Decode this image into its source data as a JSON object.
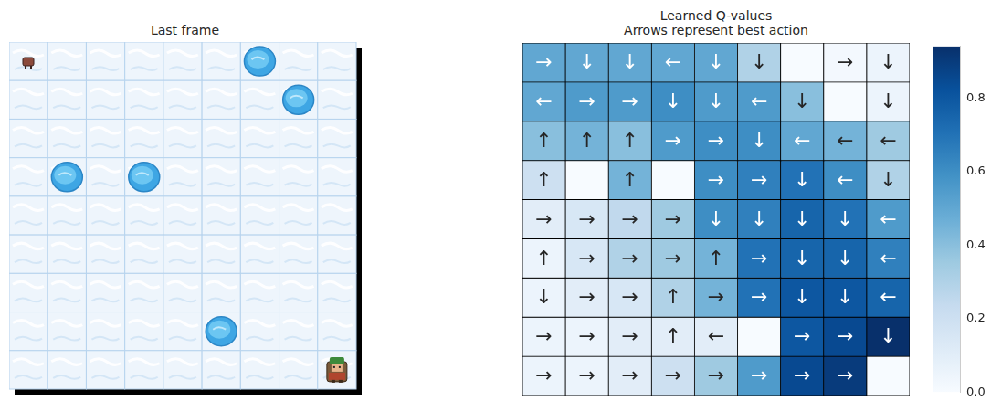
{
  "frame": {
    "title": "Last frame",
    "rows": 9,
    "cols": 9,
    "holes": [
      [
        0,
        6
      ],
      [
        1,
        7
      ],
      [
        3,
        1
      ],
      [
        3,
        3
      ],
      [
        7,
        5
      ]
    ],
    "start": [
      0,
      0
    ],
    "player": [
      8,
      8
    ]
  },
  "chart_data": {
    "type": "heatmap",
    "title": "Learned Q-values",
    "subtitle": "Arrows represent best action",
    "cells": [
      [
        0.5,
        0.5,
        0.5,
        0.5,
        0.5,
        0.3,
        0,
        0.02,
        0.05
      ],
      [
        0.5,
        0.55,
        0.55,
        0.6,
        0.55,
        0.55,
        0.4,
        0,
        0.05
      ],
      [
        0.4,
        0.45,
        0.4,
        0.55,
        0.6,
        0.6,
        0.5,
        0.45,
        0.35
      ],
      [
        0.2,
        0,
        0.45,
        0,
        0.6,
        0.65,
        0.7,
        0.6,
        0.3
      ],
      [
        0.1,
        0.15,
        0.25,
        0.35,
        0.6,
        0.65,
        0.75,
        0.7,
        0.55
      ],
      [
        0.05,
        0.15,
        0.3,
        0.35,
        0.45,
        0.7,
        0.75,
        0.75,
        0.65
      ],
      [
        0.05,
        0.1,
        0.15,
        0.3,
        0.45,
        0.7,
        0.8,
        0.8,
        0.75
      ],
      [
        0.05,
        0.05,
        0.1,
        0.1,
        0.1,
        0,
        0.8,
        0.85,
        0.94
      ],
      [
        0.05,
        0.05,
        0.1,
        0.2,
        0.35,
        0.55,
        0.85,
        0.9,
        0
      ]
    ],
    "cell_labels": [
      [
        "→",
        "↓",
        "↓",
        "←",
        "↓",
        "↓",
        null,
        "→",
        "↓"
      ],
      [
        "←",
        "→",
        "→",
        "↓",
        "↓",
        "←",
        "↓",
        null,
        "↓"
      ],
      [
        "↑",
        "↑",
        "↑",
        "→",
        "→",
        "↓",
        "←",
        "←",
        "←"
      ],
      [
        "↑",
        null,
        "↑",
        null,
        "→",
        "→",
        "↓",
        "←",
        "↓"
      ],
      [
        "→",
        "→",
        "→",
        "→",
        "↓",
        "↓",
        "↓",
        "↓",
        "←"
      ],
      [
        "↑",
        "→",
        "→",
        "→",
        "↑",
        "→",
        "↓",
        "↓",
        "←"
      ],
      [
        "↓",
        "→",
        "→",
        "↑",
        "→",
        "→",
        "↓",
        "↓",
        "←"
      ],
      [
        "→",
        "→",
        "→",
        "↑",
        "←",
        null,
        "→",
        "→",
        "↓"
      ],
      [
        "→",
        "→",
        "→",
        "→",
        "→",
        "→",
        "→",
        "→",
        null
      ]
    ],
    "colorbar": {
      "range": [
        0,
        0.94
      ],
      "ticks": [
        {
          "value": 0,
          "label": "0.0"
        },
        0.2,
        0.4,
        0.6,
        0.8
      ]
    },
    "tick_labels": false
  }
}
